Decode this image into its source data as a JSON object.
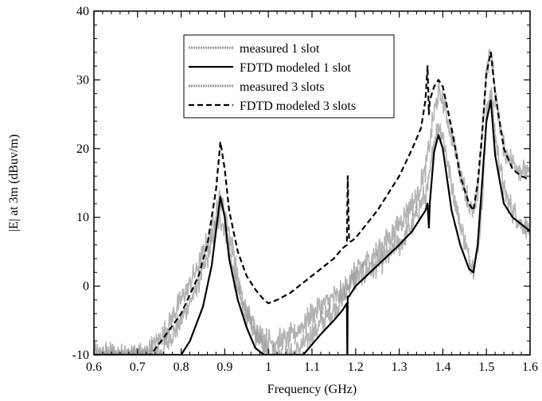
{
  "chart_data": {
    "type": "line",
    "title": "",
    "xlabel": "Frequency (GHz)",
    "ylabel": "|E| at 3m (dBuv/m)",
    "xlim": [
      0.6,
      1.6
    ],
    "ylim": [
      -10,
      40
    ],
    "x_ticks": [
      0.6,
      0.7,
      0.8,
      0.9,
      1.0,
      1.1,
      1.2,
      1.3,
      1.4,
      1.5,
      1.6
    ],
    "x_tick_labels": [
      "0.6",
      "0.7",
      "0.8",
      "0.9",
      "1",
      "1.1",
      "1.2",
      "1.3",
      "1.4",
      "1.5",
      "1.6"
    ],
    "y_ticks": [
      -10,
      0,
      10,
      20,
      30,
      40
    ],
    "y_tick_labels": [
      "-10",
      "0",
      "10",
      "20",
      "30",
      "40"
    ],
    "grid": false,
    "legend_position": "top-center",
    "series": [
      {
        "name": "measured 1 slot",
        "style": "noisy-gray",
        "color": "#9a9a9a",
        "x": [
          0.6,
          0.65,
          0.7,
          0.75,
          0.8,
          0.83,
          0.86,
          0.88,
          0.89,
          0.9,
          0.92,
          0.94,
          0.96,
          0.98,
          1.0,
          1.03,
          1.06,
          1.1,
          1.14,
          1.17,
          1.18,
          1.181,
          1.19,
          1.2,
          1.25,
          1.3,
          1.33,
          1.35,
          1.365,
          1.37,
          1.38,
          1.39,
          1.4,
          1.42,
          1.44,
          1.46,
          1.47,
          1.48,
          1.49,
          1.5,
          1.51,
          1.52,
          1.54,
          1.56,
          1.58,
          1.6
        ],
        "y": [
          -10,
          -10,
          -10,
          -10,
          -5,
          -1,
          4,
          8.5,
          10,
          8.5,
          2,
          -3,
          -6,
          -8,
          -10,
          -10,
          -10,
          -7,
          -4,
          -2,
          -1,
          0,
          0.5,
          1,
          3,
          6,
          9,
          12,
          14,
          16,
          21,
          23.5,
          22,
          15,
          9,
          4,
          3,
          5,
          12,
          25,
          29,
          22,
          14,
          11,
          9,
          8
        ]
      },
      {
        "name": "FDTD modeled 1 slot",
        "style": "solid",
        "color": "#000000",
        "x": [
          0.6,
          0.8,
          0.82,
          0.85,
          0.87,
          0.88,
          0.89,
          0.9,
          0.91,
          0.93,
          0.95,
          0.97,
          0.99,
          1.0,
          1.02,
          1.05,
          1.08,
          1.12,
          1.15,
          1.17,
          1.18,
          1.181,
          1.182,
          1.185,
          1.19,
          1.2,
          1.25,
          1.3,
          1.33,
          1.35,
          1.36,
          1.365,
          1.368,
          1.37,
          1.38,
          1.39,
          1.4,
          1.42,
          1.44,
          1.46,
          1.47,
          1.48,
          1.49,
          1.5,
          1.51,
          1.52,
          1.54,
          1.56,
          1.58,
          1.6
        ],
        "y": [
          -10,
          -10,
          -8,
          -3,
          3,
          8,
          13,
          10,
          4,
          -2,
          -6,
          -9,
          -10,
          -10,
          -10,
          -10,
          -10,
          -7,
          -5,
          -3.5,
          -2.5,
          -10,
          -1.5,
          -1.5,
          -1,
          0,
          3,
          6,
          8,
          10,
          11,
          12,
          8.5,
          12,
          19.5,
          22,
          20,
          11,
          6,
          2.5,
          2,
          6,
          15,
          24,
          27,
          19,
          12,
          10,
          9,
          8
        ]
      },
      {
        "name": "measured 3 slots",
        "style": "noisy-gray",
        "color": "#9a9a9a",
        "x": [
          0.6,
          0.68,
          0.72,
          0.76,
          0.8,
          0.84,
          0.87,
          0.88,
          0.89,
          0.9,
          0.92,
          0.94,
          0.96,
          0.98,
          1.0,
          1.03,
          1.06,
          1.1,
          1.14,
          1.17,
          1.18,
          1.19,
          1.2,
          1.25,
          1.3,
          1.34,
          1.36,
          1.38,
          1.39,
          1.4,
          1.42,
          1.44,
          1.46,
          1.47,
          1.48,
          1.49,
          1.5,
          1.51,
          1.52,
          1.54,
          1.56,
          1.58,
          1.6
        ],
        "y": [
          -10,
          -10,
          -10,
          -7,
          -2,
          3,
          8,
          11,
          13,
          11,
          5,
          -2,
          -5,
          -7,
          -8,
          -8,
          -7,
          -4,
          -2,
          -1,
          0,
          1,
          2,
          5,
          9,
          13,
          17,
          25,
          28,
          27,
          22,
          17,
          12,
          10,
          14,
          22,
          31,
          35,
          28,
          20,
          18,
          17,
          16
        ]
      },
      {
        "name": "FDTD modeled 3 slots",
        "style": "dashed",
        "color": "#000000",
        "x": [
          0.6,
          0.73,
          0.76,
          0.8,
          0.84,
          0.86,
          0.88,
          0.89,
          0.9,
          0.91,
          0.93,
          0.95,
          0.97,
          0.99,
          1.0,
          1.02,
          1.05,
          1.08,
          1.12,
          1.15,
          1.17,
          1.18,
          1.182,
          1.185,
          1.19,
          1.2,
          1.25,
          1.3,
          1.33,
          1.35,
          1.36,
          1.365,
          1.368,
          1.37,
          1.38,
          1.39,
          1.4,
          1.42,
          1.44,
          1.46,
          1.47,
          1.48,
          1.49,
          1.5,
          1.51,
          1.52,
          1.54,
          1.56,
          1.58,
          1.6
        ],
        "y": [
          -10,
          -10,
          -7.5,
          -4,
          1.5,
          6,
          14,
          21,
          17,
          11,
          5,
          1.5,
          -0.5,
          -2,
          -2.5,
          -2,
          -1,
          0.5,
          2.5,
          4,
          5.5,
          6,
          16,
          6.5,
          6.5,
          7,
          11,
          16,
          20,
          23,
          27,
          32,
          25,
          27,
          29,
          30,
          29,
          23,
          16,
          12,
          11,
          15,
          22,
          31,
          34,
          28,
          20,
          17,
          16,
          15.5
        ]
      }
    ]
  }
}
